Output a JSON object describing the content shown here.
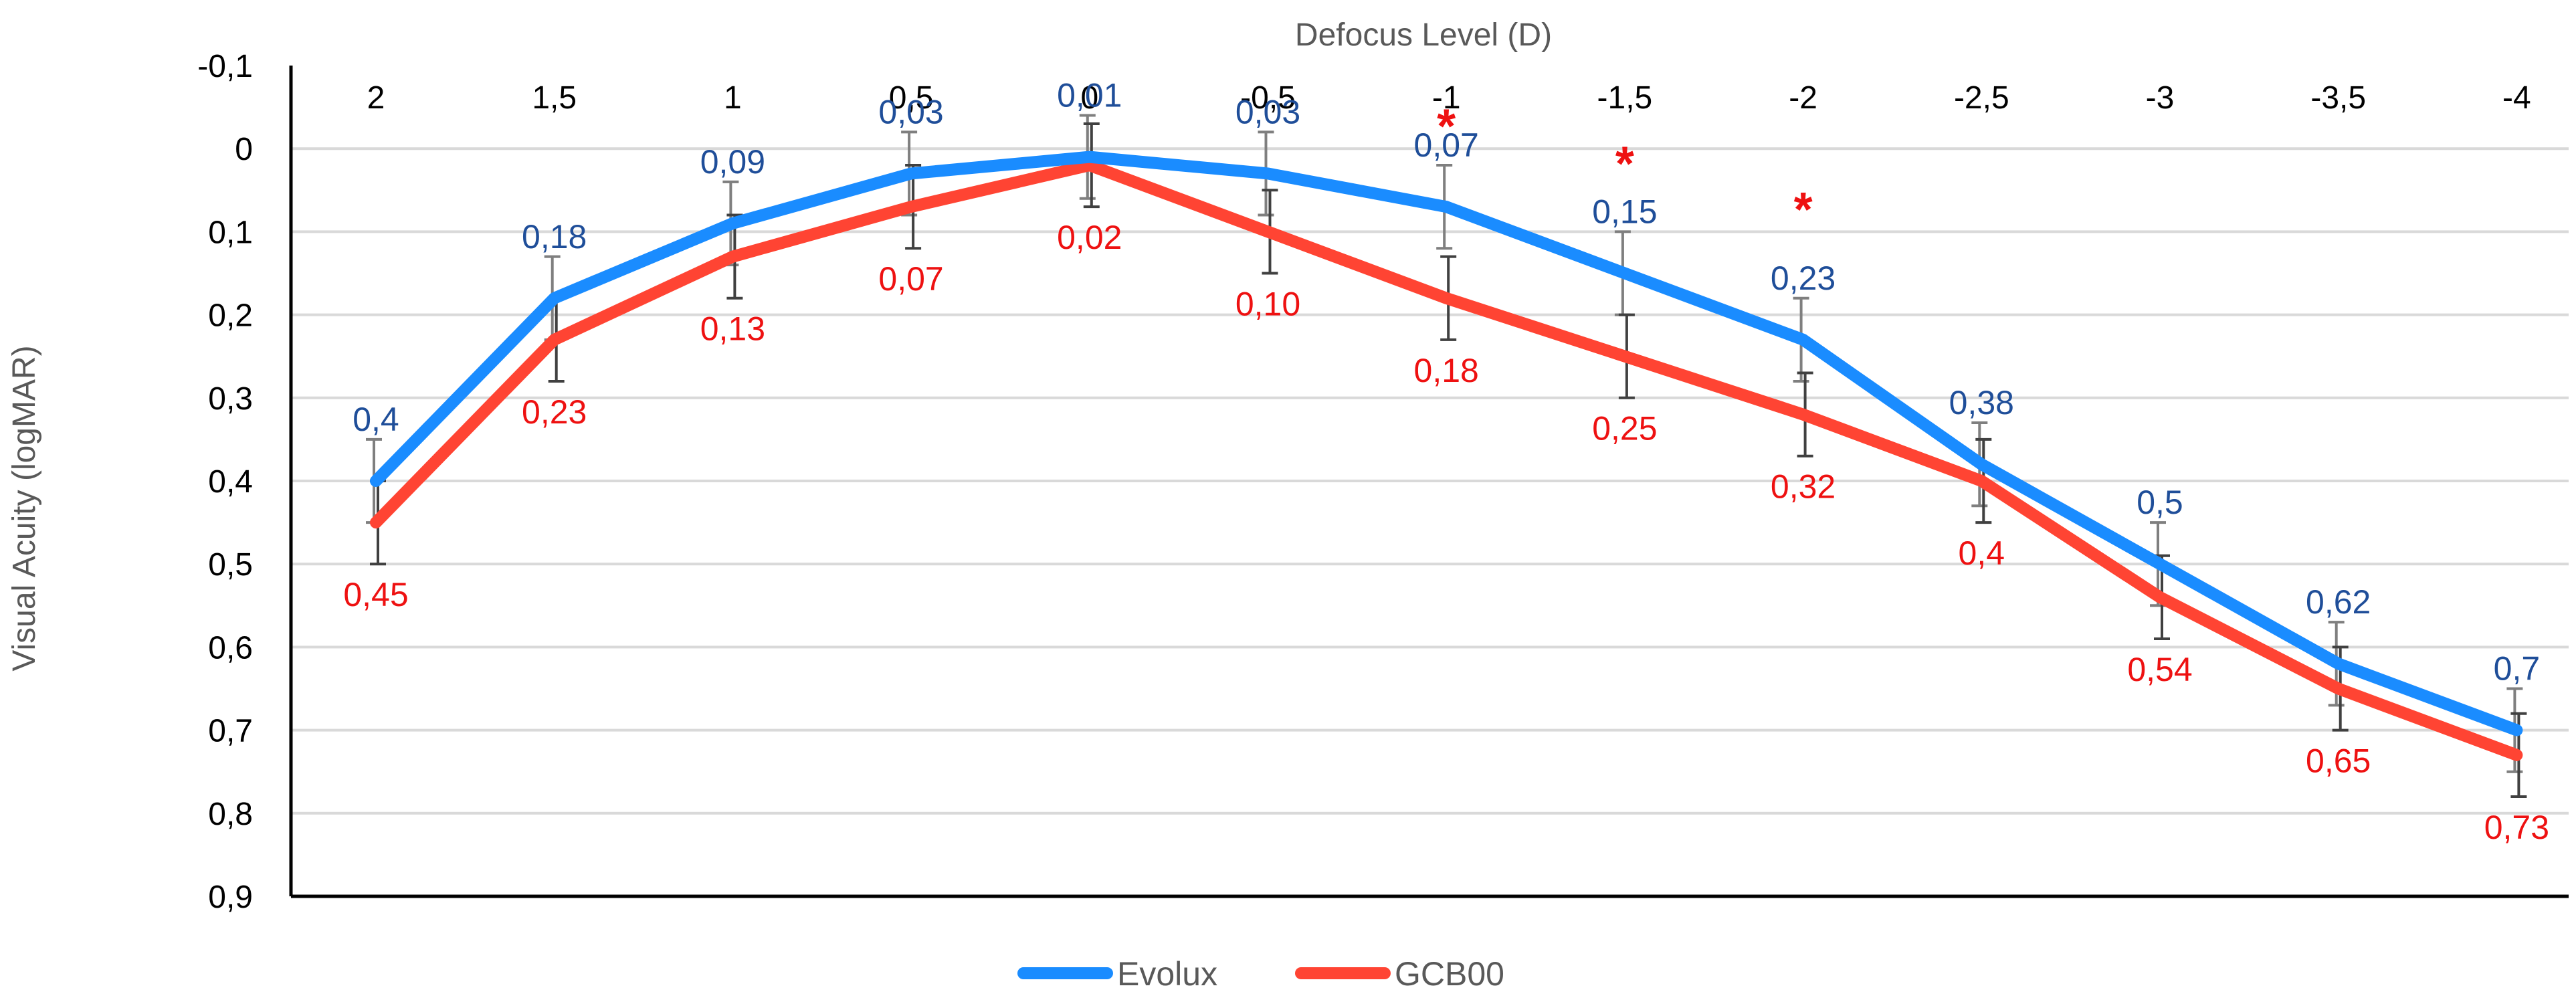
{
  "chart_data": {
    "type": "line",
    "title": "",
    "xlabel": "Defocus Level (D)",
    "ylabel": "Visual Acuity (logMAR)",
    "x_position": "top",
    "y_inverted": true,
    "ylim": [
      -0.1,
      0.9
    ],
    "y_ticks": [
      "-0,1",
      "0",
      "0,1",
      "0,2",
      "0,3",
      "0,4",
      "0,5",
      "0,6",
      "0,7",
      "0,8",
      "0,9"
    ],
    "categories": [
      "2",
      "1,5",
      "1",
      "0,5",
      "0",
      "-0,5",
      "-1",
      "-1,5",
      "-2",
      "-2,5",
      "-3",
      "-3,5",
      "-4"
    ],
    "grid": "horizontal",
    "legend_position": "bottom",
    "series": [
      {
        "name": "Evolux",
        "color": "#1a8cff",
        "label_color": "#1f4e99",
        "values": [
          0.4,
          0.18,
          0.09,
          0.03,
          0.01,
          0.03,
          0.07,
          0.15,
          0.23,
          0.38,
          0.5,
          0.62,
          0.7
        ],
        "labels": [
          "0,4",
          "0,18",
          "0,09",
          "0,03",
          "0,01",
          "0,03",
          "0,07",
          "0,15",
          "0,23",
          "0,38",
          "0,5",
          "0,62",
          "0,7"
        ],
        "error": [
          0.05,
          0.05,
          0.05,
          0.05,
          0.05,
          0.05,
          0.05,
          0.05,
          0.05,
          0.05,
          0.05,
          0.05,
          0.05
        ]
      },
      {
        "name": "GCB00",
        "color": "#ff4433",
        "label_color": "#ee1111",
        "values": [
          0.45,
          0.23,
          0.13,
          0.07,
          0.02,
          0.1,
          0.18,
          0.25,
          0.32,
          0.4,
          0.54,
          0.65,
          0.73
        ],
        "labels": [
          "0,45",
          "0,23",
          "0,13",
          "0,07",
          "0,02",
          "0,10",
          "0,18",
          "0,25",
          "0,32",
          "0,4",
          "0,54",
          "0,65",
          "0,73"
        ],
        "error": [
          0.05,
          0.05,
          0.05,
          0.05,
          0.05,
          0.05,
          0.05,
          0.05,
          0.05,
          0.05,
          0.05,
          0.05,
          0.05
        ]
      }
    ],
    "significance_marks": [
      {
        "category": "-1",
        "symbol": "*",
        "value": -0.035
      },
      {
        "category": "-1,5",
        "symbol": "*",
        "value": 0.01
      },
      {
        "category": "-2",
        "symbol": "*",
        "value": 0.065
      }
    ],
    "significance_color": "#ee1111"
  }
}
